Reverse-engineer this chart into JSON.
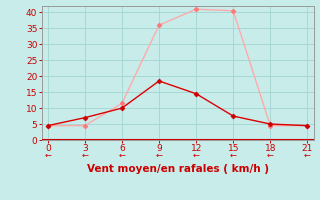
{
  "x": [
    0,
    3,
    6,
    9,
    12,
    15,
    18,
    21
  ],
  "y_rafales": [
    4.5,
    4.5,
    11.5,
    36,
    41,
    40.5,
    4.5,
    4.5
  ],
  "y_moyen": [
    4.5,
    7,
    10,
    18.5,
    14.5,
    7.5,
    5,
    4.5
  ],
  "color_rafales": "#ffaaaa",
  "color_moyen": "#dd0000",
  "marker_color_rafales": "#ff7777",
  "marker_color_moyen": "#cc0000",
  "xlabel": "Vent moyen/en rafales ( km/h )",
  "xlabel_color": "#cc0000",
  "background_color": "#c8ecea",
  "grid_color": "#a8d8d4",
  "spine_color": "#999999",
  "xlim": [
    -0.5,
    21.5
  ],
  "ylim": [
    0,
    42
  ],
  "yticks": [
    0,
    5,
    10,
    15,
    20,
    25,
    30,
    35,
    40
  ],
  "xticks": [
    0,
    3,
    6,
    9,
    12,
    15,
    18,
    21
  ],
  "tick_color": "#cc0000",
  "tick_label_size": 6.5,
  "xlabel_size": 7.5,
  "arrow_color": "#cc0000",
  "hline_color": "#cc0000",
  "hline_y": 0
}
